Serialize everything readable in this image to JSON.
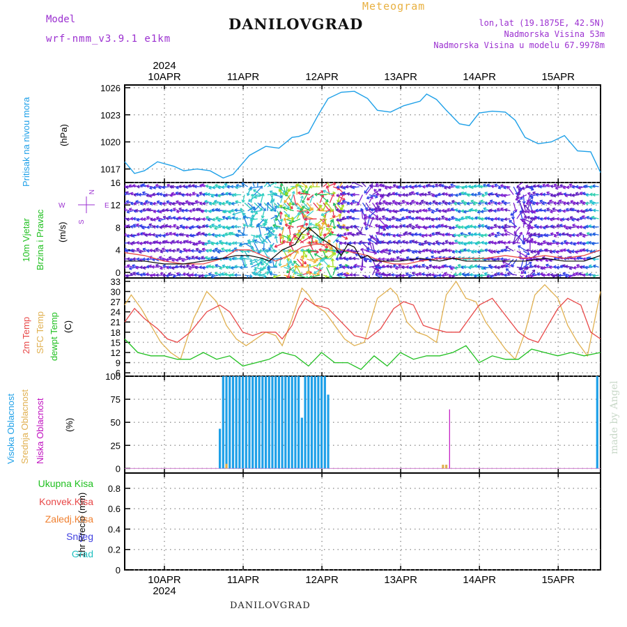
{
  "header": {
    "model_label": "Model",
    "model_name": "wrf-nmm_v3.9.1  e1km",
    "title": "DANILOVGRAD",
    "meteogram_label": "Meteogram",
    "coords": "lon,lat (19.1875E, 42.5N)",
    "elevation": "Nadmorska Visina 53m",
    "model_elevation": "Nadmorska Visina u modelu 67.9978m",
    "footer_name": "DANILOVGRAD",
    "credit": "made by Angel"
  },
  "time_axis": {
    "year": "2024",
    "days": [
      "10APR",
      "11APR",
      "12APR",
      "13APR",
      "14APR",
      "15APR"
    ],
    "start_hour": "10APR 00",
    "span_hours": 145
  },
  "colors": {
    "pressure": "#1ea0e8",
    "temp2m": "#e84848",
    "sfc_temp": "#e0b050",
    "dewpt": "#20c020",
    "cloud_high": "#1ea0e8",
    "cloud_mid": "#e0b050",
    "cloud_low": "#c010c0",
    "wind_speed": "#000000",
    "wind_gust": "#e84848"
  },
  "panels": {
    "pressure": {
      "ylabel1": "Pritisak na nivou mora",
      "ylabel2": "(hPa)"
    },
    "wind": {
      "ylabel1": "10m Vjetar",
      "ylabel2": "Brzina i Pravac",
      "ylabel3": "(m/s)",
      "compass_n": "N",
      "compass_w": "W",
      "compass_e": "E",
      "compass_s": "S"
    },
    "temp": {
      "ylabel1": "2m Temp",
      "ylabel2": "SFC Temp",
      "ylabel3": "dewpt Temp",
      "ylabel4": "(C)"
    },
    "cloud": {
      "ylabel1": "Visoka Oblacnost",
      "ylabel2": "Srednja Oblacnost",
      "ylabel3": "Niska Oblacnost",
      "ylabel4": "(%)"
    },
    "precip": {
      "ylabel": "1hr Precip (mm)",
      "legend": [
        "Ukupna Kisa",
        "Konvek.Kisa",
        "Zaledj.Kisa",
        "Snijeg",
        "Grad"
      ],
      "legend_colors": [
        "#20c020",
        "#e84848",
        "#f08030",
        "#4040e0",
        "#20c0c0"
      ]
    }
  },
  "chart_data": [
    {
      "type": "line",
      "name": "pressure",
      "ylabel": "(hPa)",
      "yticks": [
        1017,
        1020,
        1023,
        1026
      ],
      "ylim": [
        1015.5,
        1026.3
      ],
      "x_hours": [
        0,
        3,
        6,
        10,
        15,
        18,
        22,
        26,
        30,
        33,
        38,
        43,
        47,
        51,
        53,
        56,
        59,
        62,
        66,
        70,
        74,
        77,
        81,
        85,
        90,
        92,
        95,
        98,
        102,
        105,
        108,
        112,
        116,
        119,
        122,
        126,
        130,
        134,
        138,
        142,
        145
      ],
      "values": [
        1017.8,
        1016.5,
        1016.8,
        1017.8,
        1017.3,
        1016.8,
        1017.0,
        1016.8,
        1016.0,
        1016.4,
        1018.5,
        1019.5,
        1019.3,
        1020.5,
        1020.6,
        1021.0,
        1023.0,
        1024.8,
        1025.5,
        1025.6,
        1024.8,
        1023.5,
        1023.3,
        1024.0,
        1024.5,
        1025.3,
        1024.7,
        1023.5,
        1022.0,
        1021.8,
        1023.2,
        1023.4,
        1023.3,
        1022.4,
        1020.5,
        1019.8,
        1020.0,
        1020.7,
        1019.0,
        1018.9,
        1016.6
      ],
      "grid": true
    },
    {
      "type": "line",
      "name": "wind",
      "ylabel": "(m/s)",
      "yticks": [
        0,
        4,
        8,
        12,
        16
      ],
      "ylim": [
        -1,
        16
      ],
      "series": [
        {
          "name": "speed",
          "x_hours": [
            0,
            6,
            12,
            18,
            24,
            30,
            34,
            38,
            42,
            44,
            46,
            48,
            50,
            52,
            54,
            56,
            60,
            64,
            66,
            68,
            70,
            72,
            74,
            76,
            80,
            84,
            90,
            96,
            100,
            104,
            110,
            116,
            122,
            128,
            134,
            140,
            145
          ],
          "values": [
            2,
            2,
            1.5,
            1.5,
            2,
            2.5,
            3,
            3,
            2.5,
            2,
            3,
            4,
            4.5,
            5,
            7,
            8,
            6,
            4.5,
            3,
            5,
            4.5,
            2.5,
            3,
            2,
            2,
            2,
            2.5,
            2,
            2.5,
            2,
            2,
            2,
            2,
            2.5,
            2,
            2,
            3
          ]
        },
        {
          "name": "gust",
          "x_hours": [
            0,
            6,
            12,
            18,
            24,
            30,
            34,
            38,
            42,
            46,
            50,
            54,
            58,
            62,
            66,
            70,
            74,
            78,
            82,
            86,
            90,
            96,
            100,
            104,
            110,
            116,
            122,
            128,
            134,
            140,
            145
          ],
          "values": [
            3.5,
            3,
            2,
            1.5,
            1.5,
            2.5,
            4,
            4,
            3,
            2,
            3,
            4.5,
            5,
            5,
            4,
            3.5,
            3,
            2,
            1.5,
            1.5,
            2,
            2.5,
            2.5,
            2.5,
            2.5,
            3,
            2.5,
            3,
            2.5,
            3,
            4
          ]
        }
      ],
      "grid": true
    },
    {
      "type": "line",
      "name": "temperature",
      "ylabel": "(C)",
      "yticks": [
        6,
        9,
        12,
        15,
        18,
        21,
        24,
        27,
        30,
        33
      ],
      "ylim": [
        5,
        34
      ],
      "series": [
        {
          "name": "2m Temp",
          "x_hours": [
            0,
            3,
            6,
            10,
            13,
            16,
            20,
            25,
            29,
            32,
            36,
            39,
            42,
            46,
            48,
            51,
            53,
            55,
            58,
            62,
            65,
            68,
            70,
            74,
            78,
            82,
            85,
            88,
            91,
            94,
            98,
            102,
            105,
            108,
            112,
            116,
            120,
            123,
            126,
            129,
            132,
            135,
            139,
            142,
            145
          ],
          "values": [
            21,
            25,
            22,
            19,
            16,
            15,
            18,
            24,
            26,
            24,
            18,
            17,
            18,
            18,
            16,
            20,
            25,
            28,
            26,
            25,
            22,
            19,
            17,
            16,
            19,
            25,
            27,
            26,
            20,
            19,
            18,
            18,
            22,
            26,
            28,
            23,
            18,
            16,
            15,
            20,
            25,
            28,
            26,
            18,
            16
          ]
        },
        {
          "name": "SFC Temp",
          "x_hours": [
            0,
            2,
            5,
            8,
            11,
            14,
            17,
            21,
            25,
            28,
            31,
            34,
            37,
            40,
            43,
            46,
            48,
            51,
            54,
            56,
            58,
            61,
            64,
            67,
            70,
            73,
            77,
            81,
            83,
            86,
            89,
            92,
            95,
            98,
            101,
            104,
            107,
            110,
            113,
            116,
            119,
            122,
            125,
            128,
            132,
            135,
            138,
            141,
            145
          ],
          "values": [
            26,
            29,
            25,
            20,
            15,
            12,
            10,
            22,
            30,
            27,
            20,
            16,
            14,
            16,
            18,
            17,
            14,
            22,
            31,
            29,
            26,
            24,
            20,
            16,
            14,
            15,
            28,
            31,
            29,
            21,
            18,
            17,
            15,
            29,
            33,
            28,
            27,
            21,
            17,
            13,
            10,
            18,
            29,
            32,
            28,
            20,
            15,
            11,
            30
          ]
        },
        {
          "name": "dewpt Temp",
          "x_hours": [
            0,
            4,
            8,
            12,
            16,
            20,
            24,
            28,
            32,
            36,
            40,
            44,
            48,
            52,
            56,
            60,
            64,
            68,
            72,
            76,
            80,
            84,
            88,
            92,
            96,
            100,
            104,
            108,
            112,
            116,
            120,
            124,
            128,
            132,
            136,
            140,
            145
          ],
          "values": [
            16,
            12,
            11,
            11,
            10,
            10,
            12,
            10,
            11,
            8,
            9,
            10,
            12,
            11,
            8,
            12,
            9,
            9,
            7,
            11,
            8,
            12,
            10,
            11,
            11,
            12,
            14,
            9,
            11,
            10,
            10,
            13,
            12,
            11,
            12,
            11,
            12
          ]
        }
      ],
      "grid": true
    },
    {
      "type": "bar",
      "name": "cloudiness",
      "ylabel": "(%)",
      "yticks": [
        0,
        25,
        50,
        75,
        100
      ],
      "ylim": [
        -5,
        100
      ],
      "series": [
        {
          "name": "Visoka Oblacnost",
          "x_hours": [
            29,
            30,
            31,
            32,
            33,
            34,
            35,
            36,
            37,
            38,
            39,
            40,
            41,
            42,
            43,
            44,
            45,
            46,
            47,
            48,
            49,
            50,
            51,
            52,
            53,
            54,
            55,
            56,
            57,
            58,
            59,
            60,
            61,
            62,
            144
          ],
          "values": [
            43,
            100,
            100,
            100,
            100,
            100,
            100,
            100,
            100,
            100,
            100,
            100,
            100,
            100,
            100,
            100,
            100,
            100,
            100,
            100,
            100,
            100,
            100,
            100,
            100,
            55,
            100,
            100,
            100,
            100,
            100,
            100,
            100,
            80,
            100
          ]
        },
        {
          "name": "Srednja Oblacnost",
          "x_hours": [
            31,
            97,
            98
          ],
          "values": [
            5,
            4,
            4
          ]
        },
        {
          "name": "Niska Oblacnost",
          "x_hours": [
            99
          ],
          "values": [
            64
          ]
        }
      ],
      "grid": true
    },
    {
      "type": "bar",
      "name": "precipitation",
      "ylabel": "1hr Precip (mm)",
      "yticks": [
        0,
        0.2,
        0.4,
        0.6,
        0.8
      ],
      "ylim": [
        0,
        0.95
      ],
      "values": [],
      "grid": true
    }
  ]
}
